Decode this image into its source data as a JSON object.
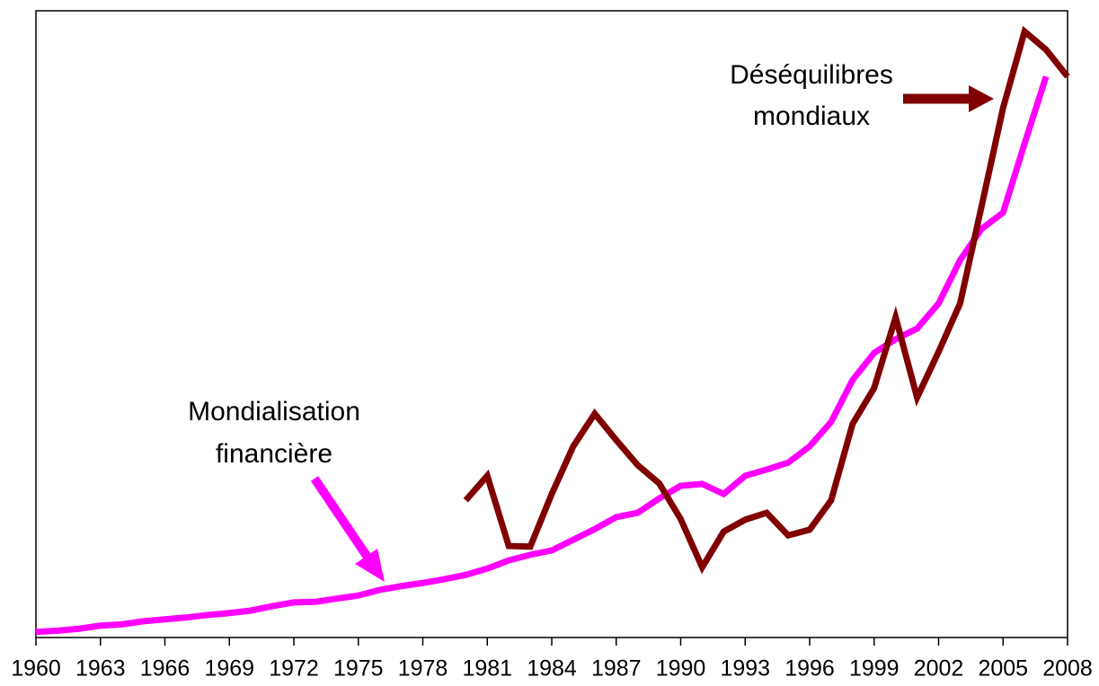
{
  "chart_data": {
    "type": "line",
    "x": [
      1960,
      1961,
      1962,
      1963,
      1964,
      1965,
      1966,
      1967,
      1968,
      1969,
      1970,
      1971,
      1972,
      1973,
      1974,
      1975,
      1976,
      1977,
      1978,
      1979,
      1980,
      1981,
      1982,
      1983,
      1984,
      1985,
      1986,
      1987,
      1988,
      1989,
      1990,
      1991,
      1992,
      1993,
      1994,
      1995,
      1996,
      1997,
      1998,
      1999,
      2000,
      2001,
      2002,
      2003,
      2004,
      2005,
      2006,
      2007,
      2008
    ],
    "series": [
      {
        "name": "Mondialisation financière",
        "color": "#ff00ff",
        "values": [
          0.9,
          1.1,
          1.4,
          1.9,
          2.1,
          2.6,
          2.9,
          3.2,
          3.6,
          3.9,
          4.3,
          5.0,
          5.6,
          5.7,
          6.2,
          6.7,
          7.6,
          8.2,
          8.7,
          9.3,
          10.0,
          11.0,
          12.3,
          13.2,
          13.9,
          15.6,
          17.3,
          19.2,
          19.9,
          22.2,
          24.2,
          24.5,
          22.9,
          25.8,
          26.8,
          27.9,
          30.5,
          34.4,
          41.1,
          45.4,
          47.6,
          49.3,
          53.3,
          60.2,
          65.2,
          67.8,
          78.8,
          89.5,
          null
        ]
      },
      {
        "name": "Déséquilibres mondiaux",
        "color": "#800000",
        "values": [
          null,
          null,
          null,
          null,
          null,
          null,
          null,
          null,
          null,
          null,
          null,
          null,
          null,
          null,
          null,
          null,
          null,
          null,
          null,
          null,
          21.9,
          25.8,
          14.6,
          14.5,
          22.9,
          30.5,
          35.7,
          31.5,
          27.5,
          24.6,
          18.9,
          11.2,
          16.9,
          18.8,
          19.9,
          16.3,
          17.2,
          21.9,
          34.1,
          39.8,
          51.1,
          38.3,
          45.6,
          53.3,
          68.8,
          84.5,
          96.7,
          93.8,
          89.5
        ]
      }
    ],
    "annotations": [
      {
        "lines": [
          "Mondialisation",
          "financière"
        ]
      },
      {
        "lines": [
          "Déséquilibres",
          "mondiaux"
        ]
      }
    ],
    "xlim": [
      1960,
      2008
    ],
    "xticks": [
      1960,
      1963,
      1966,
      1969,
      1972,
      1975,
      1978,
      1981,
      1984,
      1987,
      1990,
      1993,
      1996,
      1999,
      2002,
      2005,
      2008
    ],
    "ylim": [
      0,
      100
    ]
  }
}
